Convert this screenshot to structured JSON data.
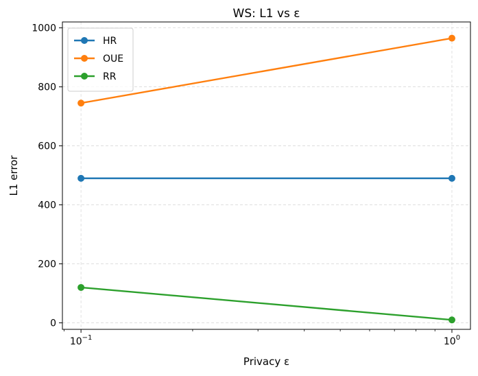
{
  "chart_data": {
    "type": "line",
    "title": "WS: L1 vs ε",
    "xlabel": "Privacy ε",
    "ylabel": "L1 error",
    "x": [
      0.1,
      1.0
    ],
    "xscale": "log",
    "xlim": [
      0.0891,
      1.122
    ],
    "ylim": [
      -22,
      1020
    ],
    "x_ticks": [
      {
        "value": 0.1,
        "base": "10",
        "exp": "−1"
      },
      {
        "value": 1.0,
        "base": "10",
        "exp": "0"
      }
    ],
    "y_ticks": [
      {
        "value": 0,
        "label": "0"
      },
      {
        "value": 200,
        "label": "200"
      },
      {
        "value": 400,
        "label": "400"
      },
      {
        "value": 600,
        "label": "600"
      },
      {
        "value": 800,
        "label": "800"
      },
      {
        "value": 1000,
        "label": "1000"
      }
    ],
    "grid": true,
    "legend_position": "top-left",
    "series": [
      {
        "name": "HR",
        "color": "#1f77b4",
        "values": [
          490,
          490
        ]
      },
      {
        "name": "OUE",
        "color": "#ff7f0e",
        "values": [
          745,
          965
        ]
      },
      {
        "name": "RR",
        "color": "#2ca02c",
        "values": [
          120,
          10
        ]
      }
    ]
  }
}
